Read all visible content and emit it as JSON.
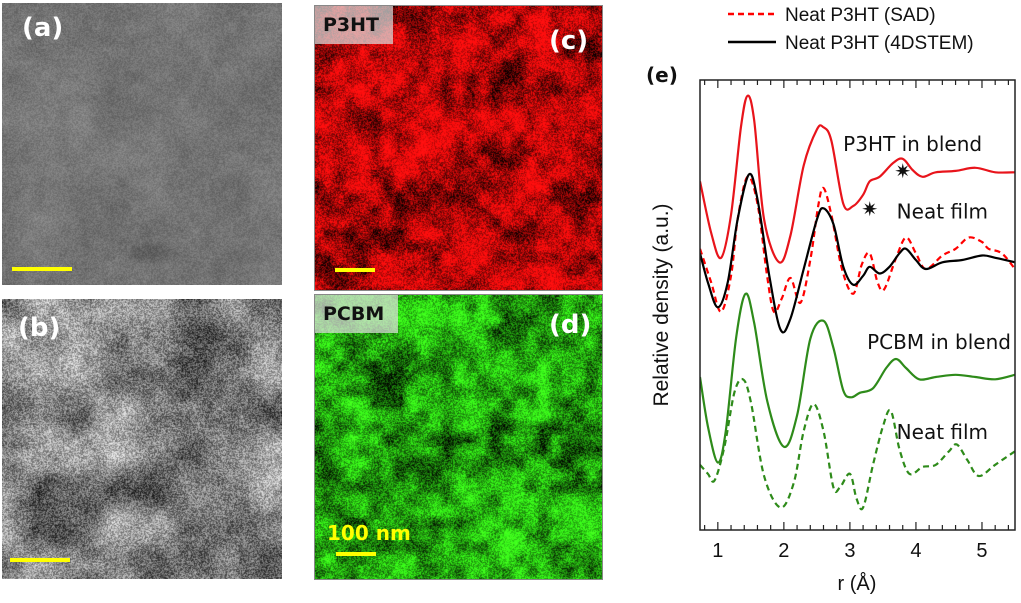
{
  "panels": {
    "a": {
      "label": "(a)",
      "kind": "grayscale-micrograph",
      "scalebar": true
    },
    "b": {
      "label": "(b)",
      "kind": "grayscale-map",
      "scalebar": true
    },
    "c": {
      "label": "(c)",
      "tag": "P3HT",
      "color": "#ff0000",
      "scalebar": true
    },
    "d": {
      "label": "(d)",
      "tag": "PCBM",
      "color": "#22dd22",
      "scalebar": true,
      "scale_text": "100 nm"
    }
  },
  "chart_data": {
    "type": "line",
    "panel_label": "(e)",
    "title": "",
    "xlabel": "r (Å)",
    "ylabel": "Relative density (a.u.)",
    "xlim": [
      0.73,
      5.5
    ],
    "ylim": [
      0,
      100
    ],
    "xticks": [
      1,
      2,
      3,
      4,
      5
    ],
    "xtick_labels": [
      "1",
      "2",
      "3",
      "4",
      "5"
    ],
    "minor_xtick_step": 0.2,
    "grid": false,
    "legend": {
      "placement": "top-right-outside",
      "entries": [
        {
          "name": "Neat P3HT (SAD)",
          "color": "#ff0000",
          "style": "dashed"
        },
        {
          "name": "Neat P3HT (4DSTEM)",
          "color": "#000000",
          "style": "solid"
        }
      ]
    },
    "annotations": [
      {
        "text": "P3HT in blend",
        "x": 3.95,
        "y": 85.5
      },
      {
        "text": "Neat film",
        "x": 4.4,
        "y": 70.5
      },
      {
        "text": "PCBM in blend",
        "x": 4.35,
        "y": 41.5
      },
      {
        "text": "Neat film",
        "x": 4.4,
        "y": 21.5
      },
      {
        "text": "✷",
        "x": 3.3,
        "y": 71.0
      },
      {
        "text": "✷",
        "x": 3.8,
        "y": 79.5
      }
    ],
    "series": [
      {
        "name": "P3HT in blend",
        "color": "#e8141b",
        "style": "solid",
        "x": [
          0.73,
          0.9,
          1.05,
          1.2,
          1.35,
          1.45,
          1.55,
          1.7,
          1.93,
          2.1,
          2.3,
          2.5,
          2.6,
          2.72,
          2.9,
          3.05,
          3.2,
          3.3,
          3.45,
          3.65,
          3.8,
          3.95,
          4.1,
          4.3,
          4.6,
          4.9,
          5.2,
          5.5
        ],
        "y": [
          77.5,
          66.0,
          60.5,
          70.0,
          89.5,
          96.5,
          91.0,
          69.0,
          59.5,
          65.5,
          81.0,
          89.0,
          89.5,
          86.5,
          72.5,
          72.0,
          74.5,
          77.5,
          78.5,
          81.5,
          82.5,
          80.0,
          78.5,
          79.5,
          79.8,
          80.5,
          79.5,
          79.5
        ]
      },
      {
        "name": "Neat P3HT (4DSTEM)",
        "color": "#000000",
        "style": "solid",
        "x": [
          0.73,
          0.85,
          1.0,
          1.15,
          1.3,
          1.47,
          1.6,
          1.78,
          1.95,
          2.1,
          2.3,
          2.5,
          2.6,
          2.75,
          2.9,
          3.05,
          3.2,
          3.3,
          3.45,
          3.6,
          3.75,
          3.85,
          4.0,
          4.15,
          4.4,
          4.7,
          5.0,
          5.2,
          5.5
        ],
        "y": [
          61.5,
          55.0,
          49.5,
          55.0,
          69.0,
          79.0,
          73.5,
          56.5,
          44.5,
          47.0,
          58.0,
          69.0,
          71.5,
          68.0,
          58.5,
          54.5,
          56.5,
          58.5,
          57.0,
          58.5,
          61.5,
          62.5,
          60.0,
          58.0,
          59.5,
          60.0,
          61.0,
          60.5,
          59.5
        ]
      },
      {
        "name": "Neat P3HT (SAD)",
        "color": "#ff0000",
        "style": "dashed",
        "x": [
          0.73,
          0.9,
          1.05,
          1.2,
          1.3,
          1.45,
          1.6,
          1.75,
          1.85,
          1.97,
          2.1,
          2.25,
          2.4,
          2.52,
          2.6,
          2.72,
          2.88,
          3.05,
          3.18,
          3.3,
          3.42,
          3.52,
          3.7,
          3.85,
          4.0,
          4.15,
          4.4,
          4.6,
          4.8,
          5.0,
          5.1,
          5.3,
          5.5
        ],
        "y": [
          62.5,
          55.0,
          48.5,
          56.5,
          69.0,
          78.5,
          72.5,
          56.0,
          48.5,
          51.5,
          56.0,
          50.5,
          60.0,
          72.0,
          76.0,
          70.0,
          58.0,
          52.5,
          59.0,
          61.5,
          55.0,
          53.5,
          60.5,
          65.0,
          61.5,
          58.0,
          61.0,
          62.5,
          65.0,
          64.0,
          62.5,
          61.5,
          58.0
        ]
      },
      {
        "name": "PCBM in blend",
        "color": "#2e8b1a",
        "style": "solid",
        "x": [
          0.73,
          0.85,
          1.0,
          1.12,
          1.28,
          1.42,
          1.55,
          1.75,
          2.0,
          2.2,
          2.4,
          2.6,
          2.75,
          2.9,
          3.02,
          3.15,
          3.35,
          3.55,
          3.7,
          3.85,
          4.05,
          4.3,
          4.6,
          4.9,
          5.2,
          5.5
        ],
        "y": [
          34.0,
          23.0,
          15.0,
          22.0,
          43.0,
          52.5,
          46.0,
          28.5,
          18.5,
          25.5,
          42.5,
          46.5,
          40.5,
          31.0,
          29.5,
          30.5,
          31.5,
          36.0,
          38.0,
          36.0,
          33.5,
          34.0,
          34.5,
          34.0,
          33.5,
          34.5
        ]
      },
      {
        "name": "PCBM neat film",
        "color": "#2e8b1a",
        "style": "dashed",
        "x": [
          0.73,
          0.85,
          0.95,
          1.1,
          1.25,
          1.38,
          1.5,
          1.7,
          1.95,
          2.15,
          2.3,
          2.45,
          2.6,
          2.75,
          2.85,
          3.0,
          3.1,
          3.2,
          3.35,
          3.5,
          3.62,
          3.75,
          3.9,
          4.1,
          4.3,
          4.5,
          4.62,
          4.78,
          4.95,
          5.2,
          5.5
        ],
        "y": [
          14.5,
          12.5,
          11.0,
          18.5,
          30.5,
          33.5,
          28.5,
          12.0,
          5.0,
          10.5,
          22.0,
          28.0,
          22.0,
          9.5,
          9.5,
          12.5,
          7.0,
          5.0,
          14.5,
          23.0,
          26.5,
          18.0,
          12.5,
          14.0,
          14.5,
          17.5,
          19.0,
          15.5,
          12.0,
          14.5,
          17.5
        ]
      }
    ]
  }
}
